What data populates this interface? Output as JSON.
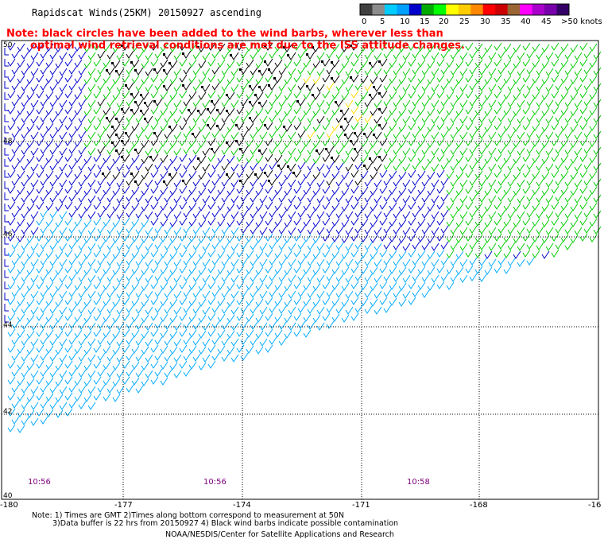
{
  "title": "Rapidscat Winds(25KM) 20150927 ascending",
  "note": [
    "Note: black circles have been added to the wind barbs, wherever less than",
    "optimal wind retrieval conditions are met due to the ISS attitude changes."
  ],
  "color_scale": {
    "labels": [
      "0",
      "5",
      "10",
      "15",
      "20",
      "25",
      "30",
      "35",
      "40",
      "45",
      ">50 knots"
    ],
    "colors": [
      "#404040",
      "#8c8c8c",
      "#00ccff",
      "#00a0ff",
      "#0000cc",
      "#00aa00",
      "#00ff00",
      "#ffff00",
      "#ffcc00",
      "#ff8800",
      "#ff0000",
      "#cc0000",
      "#996633",
      "#ff00ff",
      "#aa00cc",
      "#7700aa",
      "#330066"
    ]
  },
  "lat_labels": [
    "50",
    "48",
    "46",
    "44",
    "42",
    "40"
  ],
  "lon_labels": [
    "-180",
    "-177",
    "-174",
    "-171",
    "-168",
    "-16"
  ],
  "times": [
    "10:56",
    "10:56",
    "10:58"
  ],
  "footnote": [
    "Note: 1) Times are GMT 2)Times along bottom correspond to measurement at 50N",
    "3)Data buffer is 22 hrs from 20150927 4) Black wind barbs indicate possible contamination",
    "NOAA/NESDIS/Center for Satellite Applications and Research"
  ]
}
